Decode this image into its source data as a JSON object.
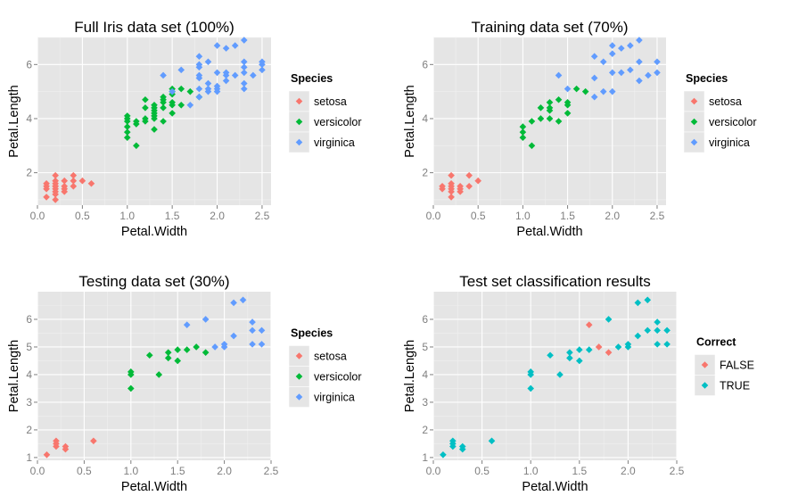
{
  "chart_data": [
    {
      "type": "scatter",
      "title": "Full Iris data set (100%)",
      "xlabel": "Petal.Width",
      "ylabel": "Petal.Length",
      "xlim": [
        0,
        2.6
      ],
      "ylim": [
        0.8,
        7.0
      ],
      "xticks": [
        0,
        0.5,
        1,
        1.5,
        2,
        2.5
      ],
      "xtick_labels": [
        "0.0",
        "0.5",
        "1.0",
        "1.5",
        "2.0",
        "2.5"
      ],
      "yticks": [
        2,
        4,
        6
      ],
      "ytick_labels": [
        "2",
        "4",
        "6"
      ],
      "legend": {
        "title": "Species",
        "position": "right"
      },
      "series": [
        {
          "name": "setosa",
          "color": "#F8766D",
          "x": [
            0.1,
            0.1,
            0.1,
            0.1,
            0.2,
            0.2,
            0.2,
            0.2,
            0.2,
            0.2,
            0.2,
            0.2,
            0.2,
            0.3,
            0.3,
            0.3,
            0.3,
            0.4,
            0.4,
            0.4,
            0.5,
            0.6
          ],
          "y": [
            1.1,
            1.4,
            1.5,
            1.6,
            1.2,
            1.3,
            1.4,
            1.5,
            1.6,
            1.7,
            1.9,
            1.0,
            1.5,
            1.3,
            1.4,
            1.5,
            1.7,
            1.5,
            1.7,
            1.9,
            1.7,
            1.6
          ]
        },
        {
          "name": "versicolor",
          "color": "#00BA38",
          "x": [
            1.0,
            1.0,
            1.0,
            1.0,
            1.0,
            1.0,
            1.1,
            1.1,
            1.1,
            1.2,
            1.2,
            1.2,
            1.2,
            1.3,
            1.3,
            1.3,
            1.3,
            1.3,
            1.3,
            1.3,
            1.4,
            1.4,
            1.4,
            1.4,
            1.4,
            1.5,
            1.5,
            1.5,
            1.5,
            1.5,
            1.5,
            1.6,
            1.6,
            1.7,
            1.8
          ],
          "y": [
            3.3,
            3.5,
            3.7,
            3.9,
            4.0,
            4.1,
            3.0,
            3.8,
            3.9,
            3.9,
            4.0,
            4.4,
            4.7,
            3.6,
            4.0,
            4.1,
            4.2,
            4.3,
            4.4,
            4.5,
            3.9,
            4.4,
            4.6,
            4.7,
            4.8,
            4.2,
            4.5,
            4.6,
            4.9,
            5.0,
            5.1,
            4.5,
            5.1,
            5.0,
            4.8
          ]
        },
        {
          "name": "virginica",
          "color": "#619CFF",
          "x": [
            1.4,
            1.5,
            1.6,
            1.7,
            1.8,
            1.8,
            1.8,
            1.8,
            1.8,
            1.8,
            1.8,
            1.9,
            1.9,
            1.9,
            1.9,
            2.0,
            2.0,
            2.0,
            2.0,
            2.0,
            2.1,
            2.1,
            2.1,
            2.1,
            2.2,
            2.2,
            2.3,
            2.3,
            2.3,
            2.3,
            2.3,
            2.3,
            2.4,
            2.5,
            2.5,
            2.5
          ],
          "y": [
            5.6,
            5.0,
            5.8,
            4.5,
            4.8,
            5.1,
            5.5,
            5.6,
            5.9,
            6.0,
            6.3,
            5.0,
            5.1,
            5.3,
            6.1,
            5.0,
            5.1,
            5.2,
            5.7,
            6.7,
            5.4,
            5.6,
            5.7,
            6.6,
            5.6,
            6.7,
            5.1,
            5.3,
            5.7,
            5.9,
            6.1,
            6.9,
            5.6,
            5.8,
            6.0,
            6.1
          ]
        }
      ]
    },
    {
      "type": "scatter",
      "title": "Training data set (70%)",
      "xlabel": "Petal.Width",
      "ylabel": "Petal.Length",
      "xlim": [
        0,
        2.6
      ],
      "ylim": [
        0.8,
        7.0
      ],
      "xticks": [
        0,
        0.5,
        1,
        1.5,
        2,
        2.5
      ],
      "xtick_labels": [
        "0.0",
        "0.5",
        "1.0",
        "1.5",
        "2.0",
        "2.5"
      ],
      "yticks": [
        2,
        4,
        6
      ],
      "ytick_labels": [
        "2",
        "4",
        "6"
      ],
      "legend": {
        "title": "Species",
        "position": "right"
      },
      "series": [
        {
          "name": "setosa",
          "color": "#F8766D",
          "x": [
            0.1,
            0.1,
            0.2,
            0.2,
            0.2,
            0.2,
            0.2,
            0.2,
            0.3,
            0.3,
            0.3,
            0.4,
            0.4,
            0.5
          ],
          "y": [
            1.4,
            1.5,
            1.1,
            1.3,
            1.4,
            1.5,
            1.6,
            1.9,
            1.3,
            1.4,
            1.5,
            1.5,
            1.9,
            1.7
          ]
        },
        {
          "name": "versicolor",
          "color": "#00BA38",
          "x": [
            1.0,
            1.0,
            1.0,
            1.1,
            1.1,
            1.2,
            1.2,
            1.3,
            1.3,
            1.3,
            1.3,
            1.4,
            1.4,
            1.5,
            1.5,
            1.5,
            1.6,
            1.7
          ],
          "y": [
            3.3,
            3.5,
            3.7,
            3.0,
            3.9,
            4.0,
            4.4,
            4.0,
            4.3,
            4.4,
            4.6,
            3.9,
            4.7,
            4.2,
            4.5,
            4.6,
            5.1,
            5.0
          ]
        },
        {
          "name": "virginica",
          "color": "#619CFF",
          "x": [
            1.4,
            1.5,
            1.8,
            1.8,
            1.8,
            1.9,
            1.9,
            2.0,
            2.0,
            2.0,
            2.0,
            2.1,
            2.1,
            2.2,
            2.2,
            2.3,
            2.3,
            2.3,
            2.4,
            2.5,
            2.5
          ],
          "y": [
            5.6,
            5.1,
            4.8,
            5.5,
            6.3,
            5.0,
            6.1,
            5.0,
            5.7,
            6.7,
            6.4,
            5.7,
            6.6,
            5.8,
            6.7,
            5.4,
            6.1,
            6.9,
            5.6,
            5.7,
            6.1
          ]
        }
      ]
    },
    {
      "type": "scatter",
      "title": "Testing data set (30%)",
      "xlabel": "Petal.Width",
      "ylabel": "Petal.Length",
      "xlim": [
        0,
        2.5
      ],
      "ylim": [
        0.9,
        7.0
      ],
      "xticks": [
        0,
        0.5,
        1,
        1.5,
        2,
        2.5
      ],
      "xtick_labels": [
        "0.0",
        "0.5",
        "1.0",
        "1.5",
        "2.0",
        "2.5"
      ],
      "yticks": [
        1,
        2,
        3,
        4,
        5,
        6
      ],
      "ytick_labels": [
        "1",
        "2",
        "3",
        "4",
        "5",
        "6"
      ],
      "legend": {
        "title": "Species",
        "position": "right"
      },
      "series": [
        {
          "name": "setosa",
          "color": "#F8766D",
          "x": [
            0.1,
            0.2,
            0.2,
            0.2,
            0.3,
            0.3,
            0.6
          ],
          "y": [
            1.1,
            1.4,
            1.5,
            1.6,
            1.3,
            1.4,
            1.6
          ]
        },
        {
          "name": "versicolor",
          "color": "#00BA38",
          "x": [
            1.0,
            1.0,
            1.0,
            1.2,
            1.3,
            1.4,
            1.4,
            1.5,
            1.5,
            1.6,
            1.7,
            1.8
          ],
          "y": [
            3.5,
            4.0,
            4.1,
            4.7,
            4.0,
            4.6,
            4.8,
            4.5,
            4.9,
            4.9,
            5.0,
            4.8
          ]
        },
        {
          "name": "virginica",
          "color": "#619CFF",
          "x": [
            1.6,
            1.8,
            1.9,
            2.0,
            2.0,
            2.1,
            2.1,
            2.2,
            2.3,
            2.3,
            2.3,
            2.4,
            2.4
          ],
          "y": [
            5.8,
            6.0,
            5.0,
            5.0,
            5.1,
            5.4,
            6.6,
            6.7,
            5.1,
            5.6,
            5.9,
            5.1,
            5.6
          ]
        }
      ]
    },
    {
      "type": "scatter",
      "title": "Test set classification results",
      "xlabel": "Petal.Width",
      "ylabel": "Petal.Length",
      "xlim": [
        0,
        2.5
      ],
      "ylim": [
        0.9,
        7.0
      ],
      "xticks": [
        0,
        0.5,
        1,
        1.5,
        2,
        2.5
      ],
      "xtick_labels": [
        "0.0",
        "0.5",
        "1.0",
        "1.5",
        "2.0",
        "2.5"
      ],
      "yticks": [
        1,
        2,
        3,
        4,
        5,
        6
      ],
      "ytick_labels": [
        "1",
        "2",
        "3",
        "4",
        "5",
        "6"
      ],
      "legend": {
        "title": "Correct",
        "position": "right"
      },
      "series": [
        {
          "name": "FALSE",
          "color": "#F8766D",
          "x": [
            1.6,
            1.7,
            1.8
          ],
          "y": [
            5.8,
            5.0,
            4.8
          ]
        },
        {
          "name": "TRUE",
          "color": "#00BFC4",
          "x": [
            0.1,
            0.2,
            0.2,
            0.2,
            0.3,
            0.3,
            0.6,
            1.0,
            1.0,
            1.0,
            1.2,
            1.3,
            1.4,
            1.4,
            1.5,
            1.5,
            1.6,
            1.8,
            1.9,
            2.0,
            2.0,
            2.1,
            2.1,
            2.2,
            2.2,
            2.3,
            2.3,
            2.3,
            2.4,
            2.4
          ],
          "y": [
            1.1,
            1.4,
            1.5,
            1.6,
            1.3,
            1.4,
            1.6,
            3.5,
            4.0,
            4.1,
            4.7,
            4.0,
            4.6,
            4.8,
            4.5,
            4.9,
            4.9,
            6.0,
            5.0,
            5.0,
            5.1,
            5.4,
            6.6,
            5.6,
            6.7,
            5.1,
            5.6,
            5.9,
            5.1,
            5.6
          ]
        }
      ]
    }
  ]
}
